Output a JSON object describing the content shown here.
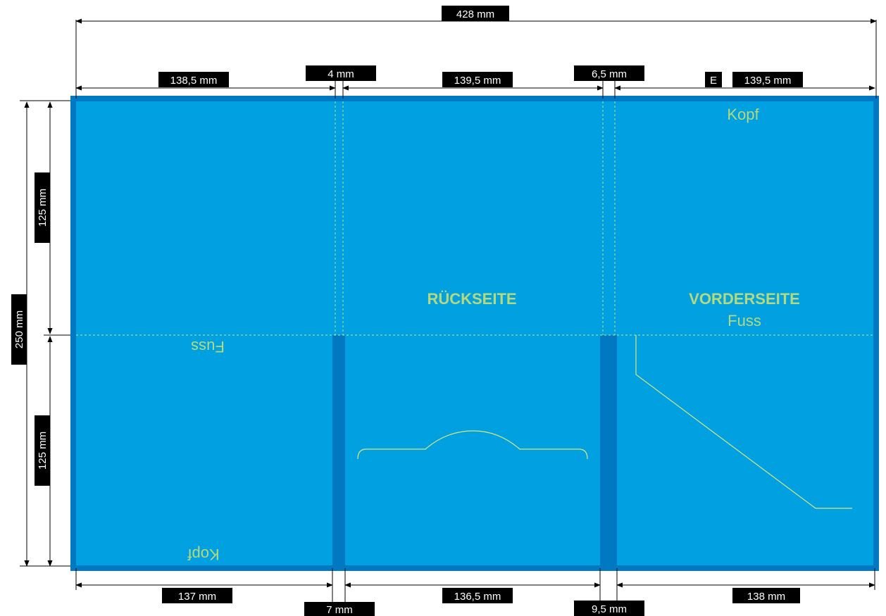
{
  "dimensions": {
    "total_width": "428 mm",
    "top_segments": [
      "138,5 mm",
      "4 mm",
      "139,5 mm",
      "6,5 mm",
      "139,5 mm"
    ],
    "top_marker": "E",
    "bottom_segments": [
      "137 mm",
      "7 mm",
      "136,5 mm",
      "9,5 mm",
      "138 mm"
    ],
    "total_height": "250 mm",
    "left_heights": [
      "125 mm",
      "125 mm"
    ]
  },
  "panels": {
    "back": "RÜCKSEITE",
    "front": "VORDERSEITE",
    "kopf": "Kopf",
    "fuss": "Fuss"
  },
  "colors": {
    "panel_fill": "#00a0e1",
    "spine_fill": "#0079c2",
    "border": "#0079c2",
    "label_text": "#b5d97c",
    "guide_line": "#d9e87a",
    "dim_box": "#000000"
  }
}
